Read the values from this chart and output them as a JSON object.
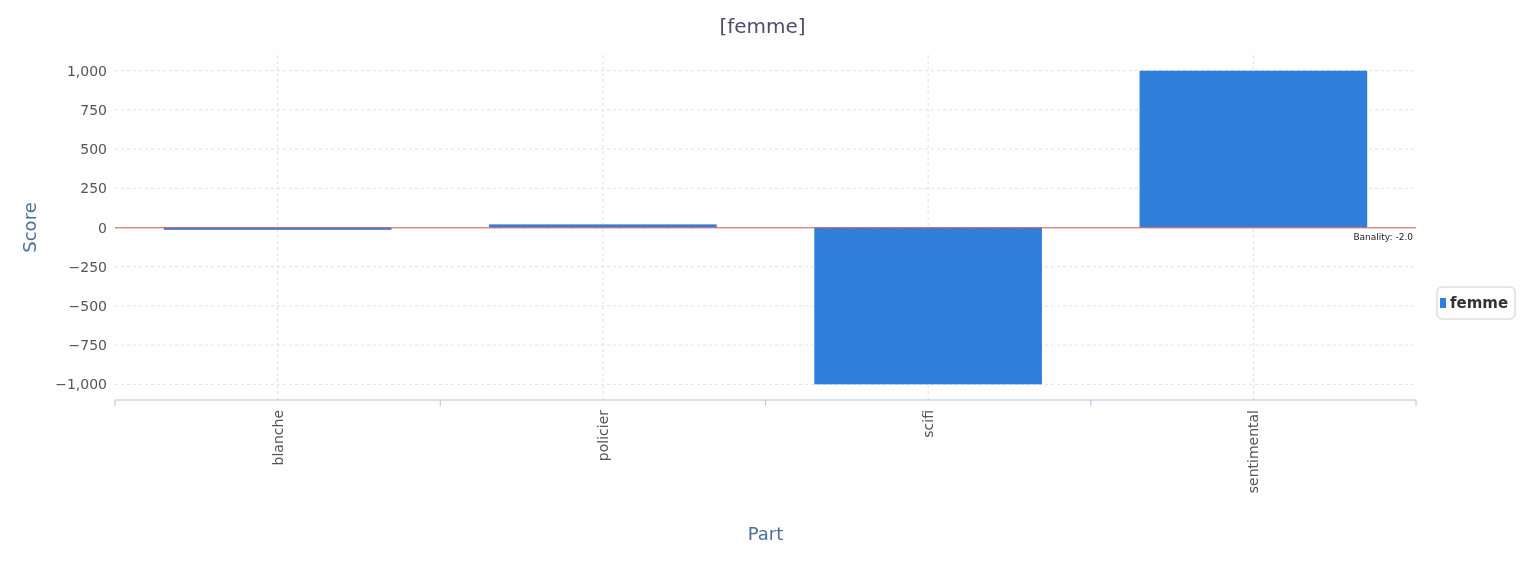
{
  "chart_data": {
    "type": "bar",
    "title": "[femme]",
    "xlabel": "Part",
    "ylabel": "Score",
    "categories": [
      "blanche",
      "policier",
      "scifi",
      "sentimental"
    ],
    "series": [
      {
        "name": "femme",
        "color": "#3080db",
        "values": [
          -15,
          20,
          -1000,
          1000
        ]
      }
    ],
    "ylim": [
      -1100,
      1100
    ],
    "yticks": [
      {
        "value": -1000,
        "label": "−1,000"
      },
      {
        "value": -750,
        "label": "−750"
      },
      {
        "value": -500,
        "label": "−500"
      },
      {
        "value": -250,
        "label": "−250"
      },
      0,
      250,
      500,
      750,
      {
        "value": 1000,
        "label": "1,000"
      }
    ],
    "ref_lines": [
      {
        "axis": "y",
        "value": -2,
        "label": "Banality: -2.0",
        "color": "#d9534f"
      }
    ],
    "grid": true,
    "legend": "right"
  }
}
